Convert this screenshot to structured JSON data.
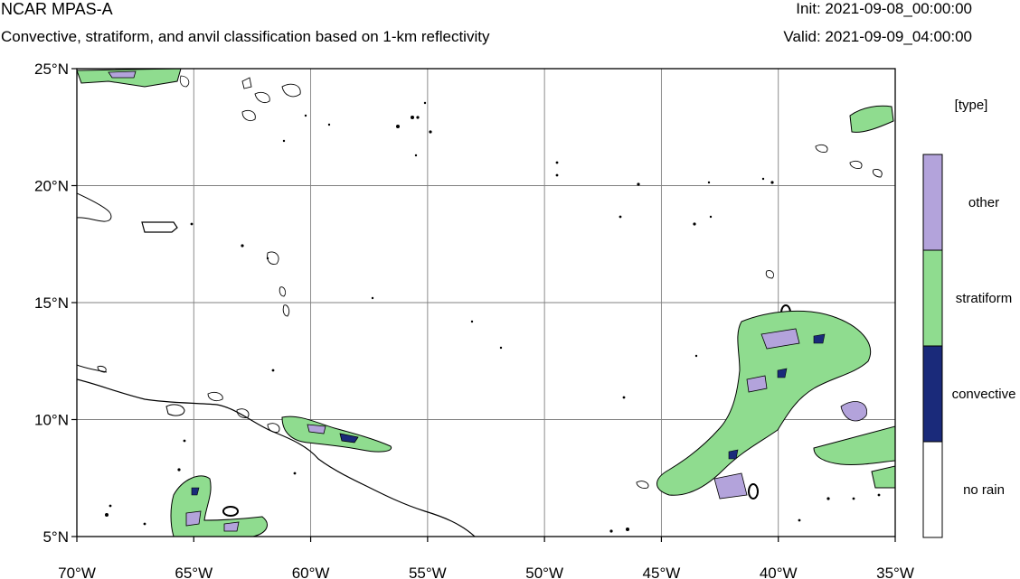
{
  "header": {
    "title": "NCAR MPAS-A",
    "subtitle": "Convective, stratiform, and anvil classification based on 1-km reflectivity",
    "init": "Init: 2021-09-08_00:00:00",
    "valid": "Valid: 2021-09-09_04:00:00"
  },
  "map": {
    "lon_range": [
      -70,
      -35
    ],
    "lat_range": [
      5,
      25
    ],
    "lon_ticks": [
      {
        "value": -70,
        "label": "70°W"
      },
      {
        "value": -65,
        "label": "65°W"
      },
      {
        "value": -60,
        "label": "60°W"
      },
      {
        "value": -55,
        "label": "55°W"
      },
      {
        "value": -50,
        "label": "50°W"
      },
      {
        "value": -45,
        "label": "45°W"
      },
      {
        "value": -40,
        "label": "40°W"
      },
      {
        "value": -35,
        "label": "35°W"
      }
    ],
    "lat_ticks": [
      {
        "value": 5,
        "label": "5°N"
      },
      {
        "value": 10,
        "label": "10°N"
      },
      {
        "value": 15,
        "label": "15°N"
      },
      {
        "value": 20,
        "label": "20°N"
      },
      {
        "value": 25,
        "label": "25°N"
      }
    ],
    "gridlines": true
  },
  "legend": {
    "title": "[type]",
    "items": [
      {
        "label": "other",
        "color": "#b3a3db"
      },
      {
        "label": "stratiform",
        "color": "#8fdc8f"
      },
      {
        "label": "convective",
        "color": "#1a2a7a"
      },
      {
        "label": "no rain",
        "color": "#ffffff"
      }
    ]
  },
  "colors": {
    "stratiform": "#8fdc8f",
    "convective": "#1a2a7a",
    "other": "#b3a3db",
    "outline": "#000000",
    "grid": "#808080"
  }
}
